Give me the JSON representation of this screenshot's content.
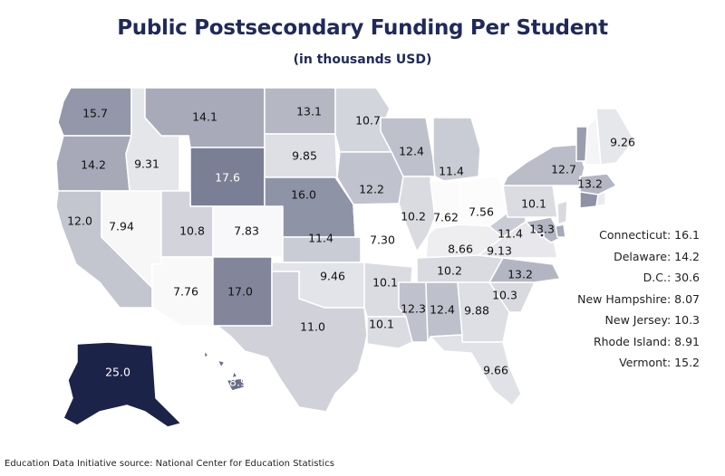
{
  "title": "Public Postsecondary Funding Per Student",
  "subtitle": "(in thousands USD)",
  "source": "Education Data Initiative source: National Center for Education Statistics",
  "map_data": {
    "type": "choropleth",
    "unit": "thousands USD",
    "scale": {
      "min_color": "#ffffff",
      "max_color": "#1c2349",
      "min": 7.3,
      "max": 25.0
    },
    "states": [
      {
        "id": "WA",
        "value": 15.7,
        "label": "15.7"
      },
      {
        "id": "OR",
        "value": 14.2,
        "label": "14.2"
      },
      {
        "id": "CA",
        "value": 12.0,
        "label": "12.0"
      },
      {
        "id": "NV",
        "value": 7.94,
        "label": "7.94"
      },
      {
        "id": "ID",
        "value": 9.31,
        "label": "9.31"
      },
      {
        "id": "MT",
        "value": 14.1,
        "label": "14.1"
      },
      {
        "id": "WY",
        "value": 17.6,
        "label": "17.6"
      },
      {
        "id": "UT",
        "value": 10.8,
        "label": "10.8"
      },
      {
        "id": "CO",
        "value": 7.83,
        "label": "7.83"
      },
      {
        "id": "AZ",
        "value": 7.76,
        "label": "7.76"
      },
      {
        "id": "NM",
        "value": 17.0,
        "label": "17.0"
      },
      {
        "id": "ND",
        "value": 13.1,
        "label": "13.1"
      },
      {
        "id": "SD",
        "value": 9.85,
        "label": "9.85"
      },
      {
        "id": "NE",
        "value": 16.0,
        "label": "16.0"
      },
      {
        "id": "KS",
        "value": 11.4,
        "label": "11.4"
      },
      {
        "id": "OK",
        "value": 9.46,
        "label": "9.46"
      },
      {
        "id": "TX",
        "value": 11.0,
        "label": "11.0"
      },
      {
        "id": "MN",
        "value": 10.7,
        "label": "10.7"
      },
      {
        "id": "IA",
        "value": 12.2,
        "label": "12.2"
      },
      {
        "id": "MO",
        "value": 7.3,
        "label": "7.30"
      },
      {
        "id": "AR",
        "value": 10.1,
        "label": "10.1"
      },
      {
        "id": "LA",
        "value": 10.1,
        "label": "10.1"
      },
      {
        "id": "WI",
        "value": 12.4,
        "label": "12.4"
      },
      {
        "id": "IL",
        "value": 10.2,
        "label": "10.2"
      },
      {
        "id": "MI",
        "value": 11.4,
        "label": "11.4"
      },
      {
        "id": "IN",
        "value": 7.62,
        "label": "7.62"
      },
      {
        "id": "OH",
        "value": 7.56,
        "label": "7.56"
      },
      {
        "id": "KY",
        "value": 8.66,
        "label": "8.66"
      },
      {
        "id": "TN",
        "value": 10.2,
        "label": "10.2"
      },
      {
        "id": "MS",
        "value": 12.3,
        "label": "12.3"
      },
      {
        "id": "AL",
        "value": 12.4,
        "label": "12.4"
      },
      {
        "id": "GA",
        "value": 9.88,
        "label": "9.88"
      },
      {
        "id": "FL",
        "value": 9.66,
        "label": "9.66"
      },
      {
        "id": "SC",
        "value": 10.3,
        "label": "10.3"
      },
      {
        "id": "NC",
        "value": 13.2,
        "label": "13.2"
      },
      {
        "id": "VA",
        "value": 9.13,
        "label": "9.13"
      },
      {
        "id": "WV",
        "value": 11.4,
        "label": "11.4"
      },
      {
        "id": "PA",
        "value": 10.1,
        "label": "10.1"
      },
      {
        "id": "NY",
        "value": 12.7,
        "label": "12.7"
      },
      {
        "id": "MD",
        "value": 13.3,
        "label": "13.3"
      },
      {
        "id": "MA",
        "value": 13.2,
        "label": "13.2"
      },
      {
        "id": "ME",
        "value": 9.26,
        "label": "9.26"
      },
      {
        "id": "AK",
        "value": 25.0,
        "label": "25.0"
      },
      {
        "id": "HI",
        "value": 18.9,
        "label": "18.9"
      },
      {
        "id": "CT",
        "value": 16.1,
        "label": ""
      },
      {
        "id": "DE",
        "value": 14.2,
        "label": ""
      },
      {
        "id": "DC",
        "value": 30.6,
        "label": ""
      },
      {
        "id": "NH",
        "value": 8.07,
        "label": ""
      },
      {
        "id": "NJ",
        "value": 10.3,
        "label": ""
      },
      {
        "id": "RI",
        "value": 8.91,
        "label": ""
      },
      {
        "id": "VT",
        "value": 15.2,
        "label": ""
      }
    ],
    "legend_items": [
      "Connecticut: 16.1",
      "Delaware: 14.2",
      "D.C.: 30.6",
      "New Hampshire: 8.07",
      "New Jersey: 10.3",
      "Rhode Island: 8.91",
      "Vermont: 15.2"
    ]
  }
}
